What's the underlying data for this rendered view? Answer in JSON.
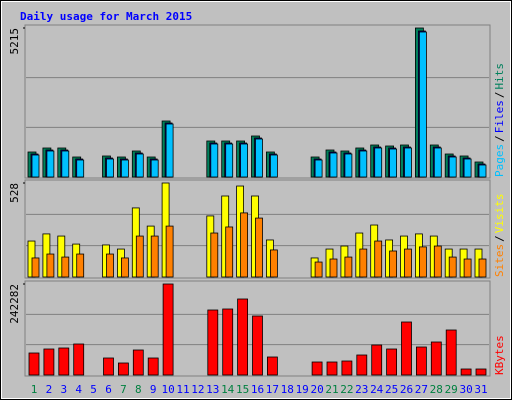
{
  "chart_data": [
    {
      "type": "bar",
      "title": "Daily usage for March 2015",
      "categories": [
        "1",
        "2",
        "3",
        "4",
        "5",
        "6",
        "7",
        "8",
        "9",
        "10",
        "11",
        "12",
        "13",
        "14",
        "15",
        "16",
        "17",
        "18",
        "19",
        "20",
        "21",
        "22",
        "23",
        "24",
        "25",
        "26",
        "27",
        "28",
        "29",
        "30",
        "31"
      ],
      "series": [
        {
          "name": "Hits",
          "color": "#00805c",
          "values": [
            875,
            1015,
            1015,
            700,
            0,
            735,
            700,
            910,
            700,
            1960,
            0,
            0,
            1260,
            1260,
            1260,
            1435,
            875,
            0,
            0,
            700,
            945,
            910,
            1015,
            1120,
            1085,
            1120,
            5215,
            1120,
            805,
            735,
            525
          ]
        },
        {
          "name": "Files",
          "color": "#0000ff",
          "values": [
            805,
            945,
            945,
            630,
            0,
            665,
            630,
            840,
            630,
            1890,
            0,
            0,
            1190,
            1190,
            1190,
            1365,
            805,
            0,
            0,
            630,
            875,
            840,
            945,
            1050,
            1015,
            1050,
            5110,
            1050,
            735,
            665,
            455
          ]
        },
        {
          "name": "Pages",
          "color": "#00c0ff",
          "values": [
            770,
            910,
            910,
            595,
            0,
            630,
            595,
            805,
            595,
            1855,
            0,
            0,
            1155,
            1155,
            1155,
            1330,
            770,
            0,
            0,
            595,
            840,
            805,
            910,
            1015,
            980,
            1015,
            5075,
            1015,
            700,
            630,
            420
          ]
        }
      ],
      "legend_separator": "/",
      "ylim": [
        0,
        5215
      ],
      "yticks": [
        5215
      ]
    },
    {
      "type": "bar",
      "categories": [
        "1",
        "2",
        "3",
        "4",
        "5",
        "6",
        "7",
        "8",
        "9",
        "10",
        "11",
        "12",
        "13",
        "14",
        "15",
        "16",
        "17",
        "18",
        "19",
        "20",
        "21",
        "22",
        "23",
        "24",
        "25",
        "26",
        "27",
        "28",
        "29",
        "30",
        "31"
      ],
      "series": [
        {
          "name": "Visits",
          "color": "#ffff00",
          "values": [
            202,
            242,
            230,
            185,
            0,
            180,
            157,
            388,
            286,
            528,
            0,
            0,
            343,
            455,
            511,
            455,
            208,
            0,
            0,
            107,
            157,
            174,
            247,
            292,
            208,
            230,
            242,
            230,
            157,
            157,
            157
          ]
        },
        {
          "name": "Sites",
          "color": "#ff8000",
          "values": [
            107,
            129,
            112,
            129,
            0,
            129,
            107,
            230,
            230,
            286,
            0,
            0,
            247,
            281,
            360,
            331,
            152,
            0,
            0,
            84,
            101,
            112,
            157,
            202,
            146,
            157,
            169,
            174,
            112,
            101,
            101
          ]
        }
      ],
      "legend_separator": "/",
      "ylim": [
        0,
        528
      ],
      "yticks": [
        528
      ]
    },
    {
      "type": "bar",
      "categories": [
        "1",
        "2",
        "3",
        "4",
        "5",
        "6",
        "7",
        "8",
        "9",
        "10",
        "11",
        "12",
        "13",
        "14",
        "15",
        "16",
        "17",
        "18",
        "19",
        "20",
        "21",
        "22",
        "23",
        "24",
        "25",
        "26",
        "27",
        "28",
        "29",
        "30",
        "31"
      ],
      "label_colors": [
        "#008040",
        "#0000ff",
        "#0000ff",
        "#0000ff",
        "#0000ff",
        "#0000ff",
        "#008040",
        "#008040",
        "#0000ff",
        "#0000ff",
        "#0000ff",
        "#0000ff",
        "#0000ff",
        "#008040",
        "#008040",
        "#0000ff",
        "#0000ff",
        "#0000ff",
        "#0000ff",
        "#0000ff",
        "#008040",
        "#008040",
        "#0000ff",
        "#0000ff",
        "#0000ff",
        "#0000ff",
        "#0000ff",
        "#008040",
        "#008040",
        "#0000ff",
        "#0000ff"
      ],
      "series": [
        {
          "name": "KBytes",
          "color": "#ff0000",
          "values": [
            58574,
            69223,
            71885,
            82535,
            0,
            45262,
            31950,
            66561,
            45262,
            242282,
            0,
            0,
            173059,
            175722,
            202347,
            157084,
            47924,
            0,
            0,
            34612,
            34612,
            37274,
            53249,
            79873,
            69223,
            141109,
            74548,
            87861,
            119810,
            15975,
            15975
          ]
        }
      ],
      "ylim": [
        0,
        242282
      ],
      "yticks": [
        242282
      ]
    }
  ]
}
